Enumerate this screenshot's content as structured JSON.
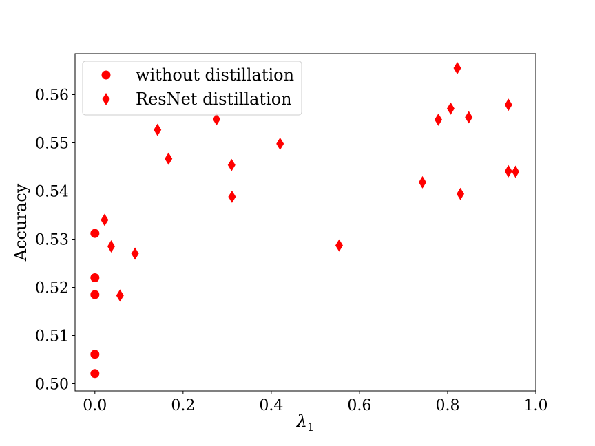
{
  "chart_data": {
    "type": "scatter",
    "title": "",
    "xlabel": "λ",
    "xlabel_subscript": "1",
    "ylabel": "Accuracy",
    "xlim": [
      -0.045,
      1.0
    ],
    "ylim": [
      0.4985,
      0.5685
    ],
    "xticks": [
      0.0,
      0.2,
      0.4,
      0.6,
      0.8,
      1.0
    ],
    "xtick_labels": [
      "0.0",
      "0.2",
      "0.4",
      "0.6",
      "0.8",
      "1.0"
    ],
    "yticks": [
      0.5,
      0.51,
      0.52,
      0.53,
      0.54,
      0.55,
      0.56
    ],
    "ytick_labels": [
      "0.50",
      "0.51",
      "0.52",
      "0.53",
      "0.54",
      "0.55",
      "0.56"
    ],
    "grid": false,
    "legend_position": "top-left",
    "series": [
      {
        "name": "without distillation",
        "marker": "circle",
        "color": "#ff0000",
        "points": [
          [
            0.0,
            0.5312
          ],
          [
            0.0,
            0.522
          ],
          [
            0.0,
            0.5185
          ],
          [
            0.0,
            0.5061
          ],
          [
            0.0,
            0.5021
          ]
        ]
      },
      {
        "name": "ResNet distillation",
        "marker": "diamond",
        "color": "#ff0000",
        "points": [
          [
            0.022,
            0.534
          ],
          [
            0.037,
            0.5285
          ],
          [
            0.057,
            0.5183
          ],
          [
            0.091,
            0.527
          ],
          [
            0.142,
            0.5527
          ],
          [
            0.167,
            0.5467
          ],
          [
            0.276,
            0.5549
          ],
          [
            0.31,
            0.5454
          ],
          [
            0.311,
            0.5388
          ],
          [
            0.42,
            0.5498
          ],
          [
            0.554,
            0.5287
          ],
          [
            0.743,
            0.5418
          ],
          [
            0.779,
            0.5548
          ],
          [
            0.807,
            0.5571
          ],
          [
            0.822,
            0.5655
          ],
          [
            0.829,
            0.5394
          ],
          [
            0.848,
            0.5553
          ],
          [
            0.938,
            0.5579
          ],
          [
            0.938,
            0.5441
          ],
          [
            0.954,
            0.544
          ]
        ]
      }
    ]
  }
}
